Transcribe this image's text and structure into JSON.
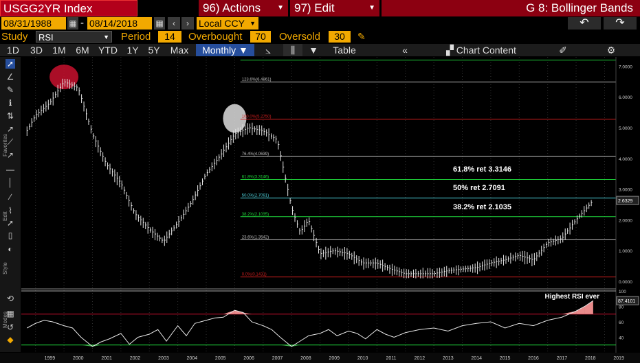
{
  "header": {
    "ticker": "USGG2YR Index",
    "actions_label": "96) Actions",
    "edit_label": "97) Edit",
    "graph_title": "G 8: Bollinger Bands"
  },
  "range": {
    "start_date": "08/31/1988",
    "end_date": "08/14/2018",
    "separator": "-",
    "currency": "Local CCY"
  },
  "study": {
    "study_label": "Study",
    "study_value": "RSI",
    "period_label": "Period",
    "period_value": "14",
    "overbought_label": "Overbought",
    "overbought_value": "70",
    "oversold_label": "Oversold",
    "oversold_value": "30"
  },
  "toolbar": {
    "periods": [
      "1D",
      "3D",
      "1M",
      "6M",
      "YTD",
      "1Y",
      "5Y",
      "Max"
    ],
    "frequency": "Monthly",
    "table_label": "Table",
    "chart_content_label": "Chart Content"
  },
  "chart_tools": {
    "track": "Track",
    "annotate": "Annotate",
    "news": "News",
    "zoom": "Zoom",
    "reset": "Reset"
  },
  "sidebar_labels": {
    "favorites": "Favorites",
    "edit": "Edit",
    "style": "Style",
    "modes": "Modes"
  },
  "chart_data": {
    "type": "line",
    "title": "G 8: Bollinger Bands",
    "series": [
      {
        "name": "USGG2YR Index",
        "x": [
          1998.7,
          1999.0,
          1999.5,
          2000.0,
          2000.5,
          2001.0,
          2001.5,
          2002.0,
          2002.5,
          2003.0,
          2003.5,
          2004.0,
          2004.5,
          2005.0,
          2005.5,
          2006.0,
          2006.5,
          2007.0,
          2007.5,
          2008.0,
          2008.3,
          2008.6,
          2009.0,
          2009.5,
          2010.0,
          2010.5,
          2011.0,
          2011.5,
          2012.0,
          2012.5,
          2013.0,
          2013.5,
          2014.0,
          2014.5,
          2015.0,
          2015.5,
          2016.0,
          2016.5,
          2017.0,
          2017.5,
          2018.0,
          2018.6
        ],
        "values": [
          4.9,
          5.4,
          5.8,
          6.5,
          6.3,
          4.8,
          3.8,
          3.2,
          2.2,
          1.7,
          1.3,
          1.9,
          2.6,
          3.5,
          4.1,
          4.8,
          5.0,
          4.9,
          4.6,
          2.4,
          1.6,
          2.0,
          0.9,
          1.0,
          0.9,
          0.6,
          0.6,
          0.4,
          0.25,
          0.25,
          0.25,
          0.35,
          0.4,
          0.45,
          0.6,
          0.7,
          0.85,
          0.7,
          1.25,
          1.4,
          2.0,
          2.6329
        ]
      }
    ],
    "last_value_label": "2.6329",
    "fib_levels": [
      {
        "label": "123.6%(6.4861)",
        "value": 6.4861
      },
      {
        "label": "100.0%(5.2750)",
        "value": 5.275
      },
      {
        "label": "76.4%(4.0639)",
        "value": 4.0639
      },
      {
        "label": "61.8%(3.3146)",
        "value": 3.3146
      },
      {
        "label": "50.0%(2.7091)",
        "value": 2.7091
      },
      {
        "label": "38.2%(2.1035)",
        "value": 2.1035
      },
      {
        "label": "23.6%(1.3542)",
        "value": 1.3542
      },
      {
        "label": "0.0%(0.1431)",
        "value": 0.1431
      }
    ],
    "annotations": [
      "61.8% ret 3.3146",
      "50% ret 2.7091",
      "38.2% ret 2.1035"
    ],
    "y_ticks": [
      "7.0000",
      "6.0000",
      "5.0000",
      "4.0000",
      "3.0000",
      "2.0000",
      "1.0000",
      "0.0000"
    ],
    "ylim": [
      -0.2,
      7.3
    ],
    "x_ticks": [
      "1999",
      "2000",
      "2001",
      "2002",
      "2003",
      "2004",
      "2005",
      "2006",
      "2007",
      "2008",
      "2009",
      "2010",
      "2011",
      "2012",
      "2013",
      "2014",
      "2015",
      "2016",
      "2017",
      "2018",
      "2019"
    ],
    "xlim": [
      1998.5,
      2019.4
    ],
    "rsi": {
      "title": "Highest RSI ever",
      "last_value_label": "87.4101",
      "y_ticks": [
        "100",
        "80",
        "60",
        "40"
      ],
      "ylim": [
        20,
        100
      ],
      "overbought": 70,
      "oversold": 30,
      "x": [
        1998.7,
        1999.0,
        1999.3,
        1999.6,
        2000.0,
        2000.3,
        2000.6,
        2001.0,
        2001.3,
        2001.6,
        2002.0,
        2002.3,
        2002.6,
        2003.0,
        2003.3,
        2003.6,
        2004.0,
        2004.3,
        2004.6,
        2005.0,
        2005.3,
        2005.6,
        2006.0,
        2006.3,
        2006.6,
        2007.0,
        2007.3,
        2007.6,
        2008.0,
        2008.3,
        2008.6,
        2009.0,
        2009.3,
        2009.6,
        2010.0,
        2010.3,
        2010.6,
        2011.0,
        2011.3,
        2011.6,
        2012.0,
        2012.5,
        2013.0,
        2013.5,
        2014.0,
        2014.5,
        2015.0,
        2015.5,
        2016.0,
        2016.5,
        2017.0,
        2017.5,
        2018.0,
        2018.3,
        2018.6
      ],
      "values": [
        52,
        58,
        62,
        60,
        55,
        52,
        40,
        28,
        34,
        38,
        45,
        31,
        40,
        44,
        50,
        35,
        55,
        42,
        58,
        62,
        65,
        66,
        75,
        72,
        60,
        55,
        50,
        40,
        28,
        35,
        42,
        45,
        50,
        42,
        48,
        45,
        38,
        50,
        44,
        40,
        46,
        50,
        52,
        48,
        55,
        58,
        60,
        52,
        58,
        55,
        62,
        66,
        74,
        80,
        87.41
      ]
    }
  },
  "colors": {
    "brand_red": "#b3001b",
    "amber": "#f2a900",
    "selected_blue": "#264e9c",
    "fib_red": "#d21e1e",
    "fib_green": "#1fd43a",
    "fib_grey": "#bfbfbf",
    "fib_cyan": "#4fd6e0",
    "highlight_red": "#c8102e",
    "highlight_white": "#dddddd"
  }
}
